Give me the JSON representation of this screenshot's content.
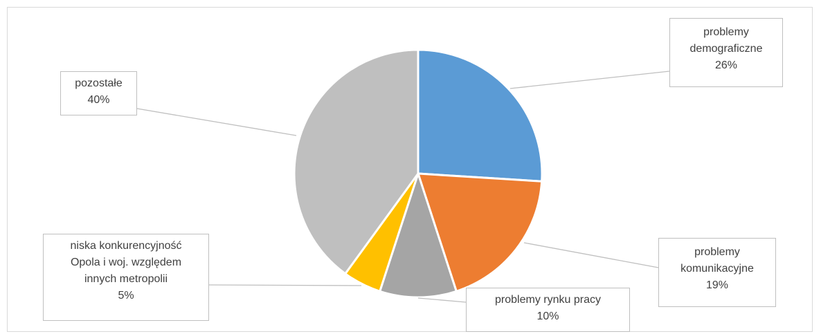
{
  "chart_data": {
    "type": "pie",
    "slices": [
      {
        "name_lines": [
          "problemy",
          "demograficzne"
        ],
        "pct_label": "26%",
        "value": 26,
        "color": "#5b9bd5"
      },
      {
        "name_lines": [
          "problemy",
          "komunikacyjne"
        ],
        "pct_label": "19%",
        "value": 19,
        "color": "#ed7d31"
      },
      {
        "name_lines": [
          "problemy rynku pracy"
        ],
        "pct_label": "10%",
        "value": 10,
        "color": "#a5a5a5"
      },
      {
        "name_lines": [
          "niska konkurencyjność",
          "Opola i woj. względem",
          "innych metropolii"
        ],
        "pct_label": "5%",
        "value": 5,
        "color": "#ffc000"
      },
      {
        "name_lines": [
          "pozostałe"
        ],
        "pct_label": "40%",
        "value": 40,
        "color": "#bfbfbf"
      }
    ],
    "start_angle": "12 o'clock",
    "direction": "clockwise",
    "legend": "none",
    "data_labels": "callout boxes with leader lines"
  }
}
